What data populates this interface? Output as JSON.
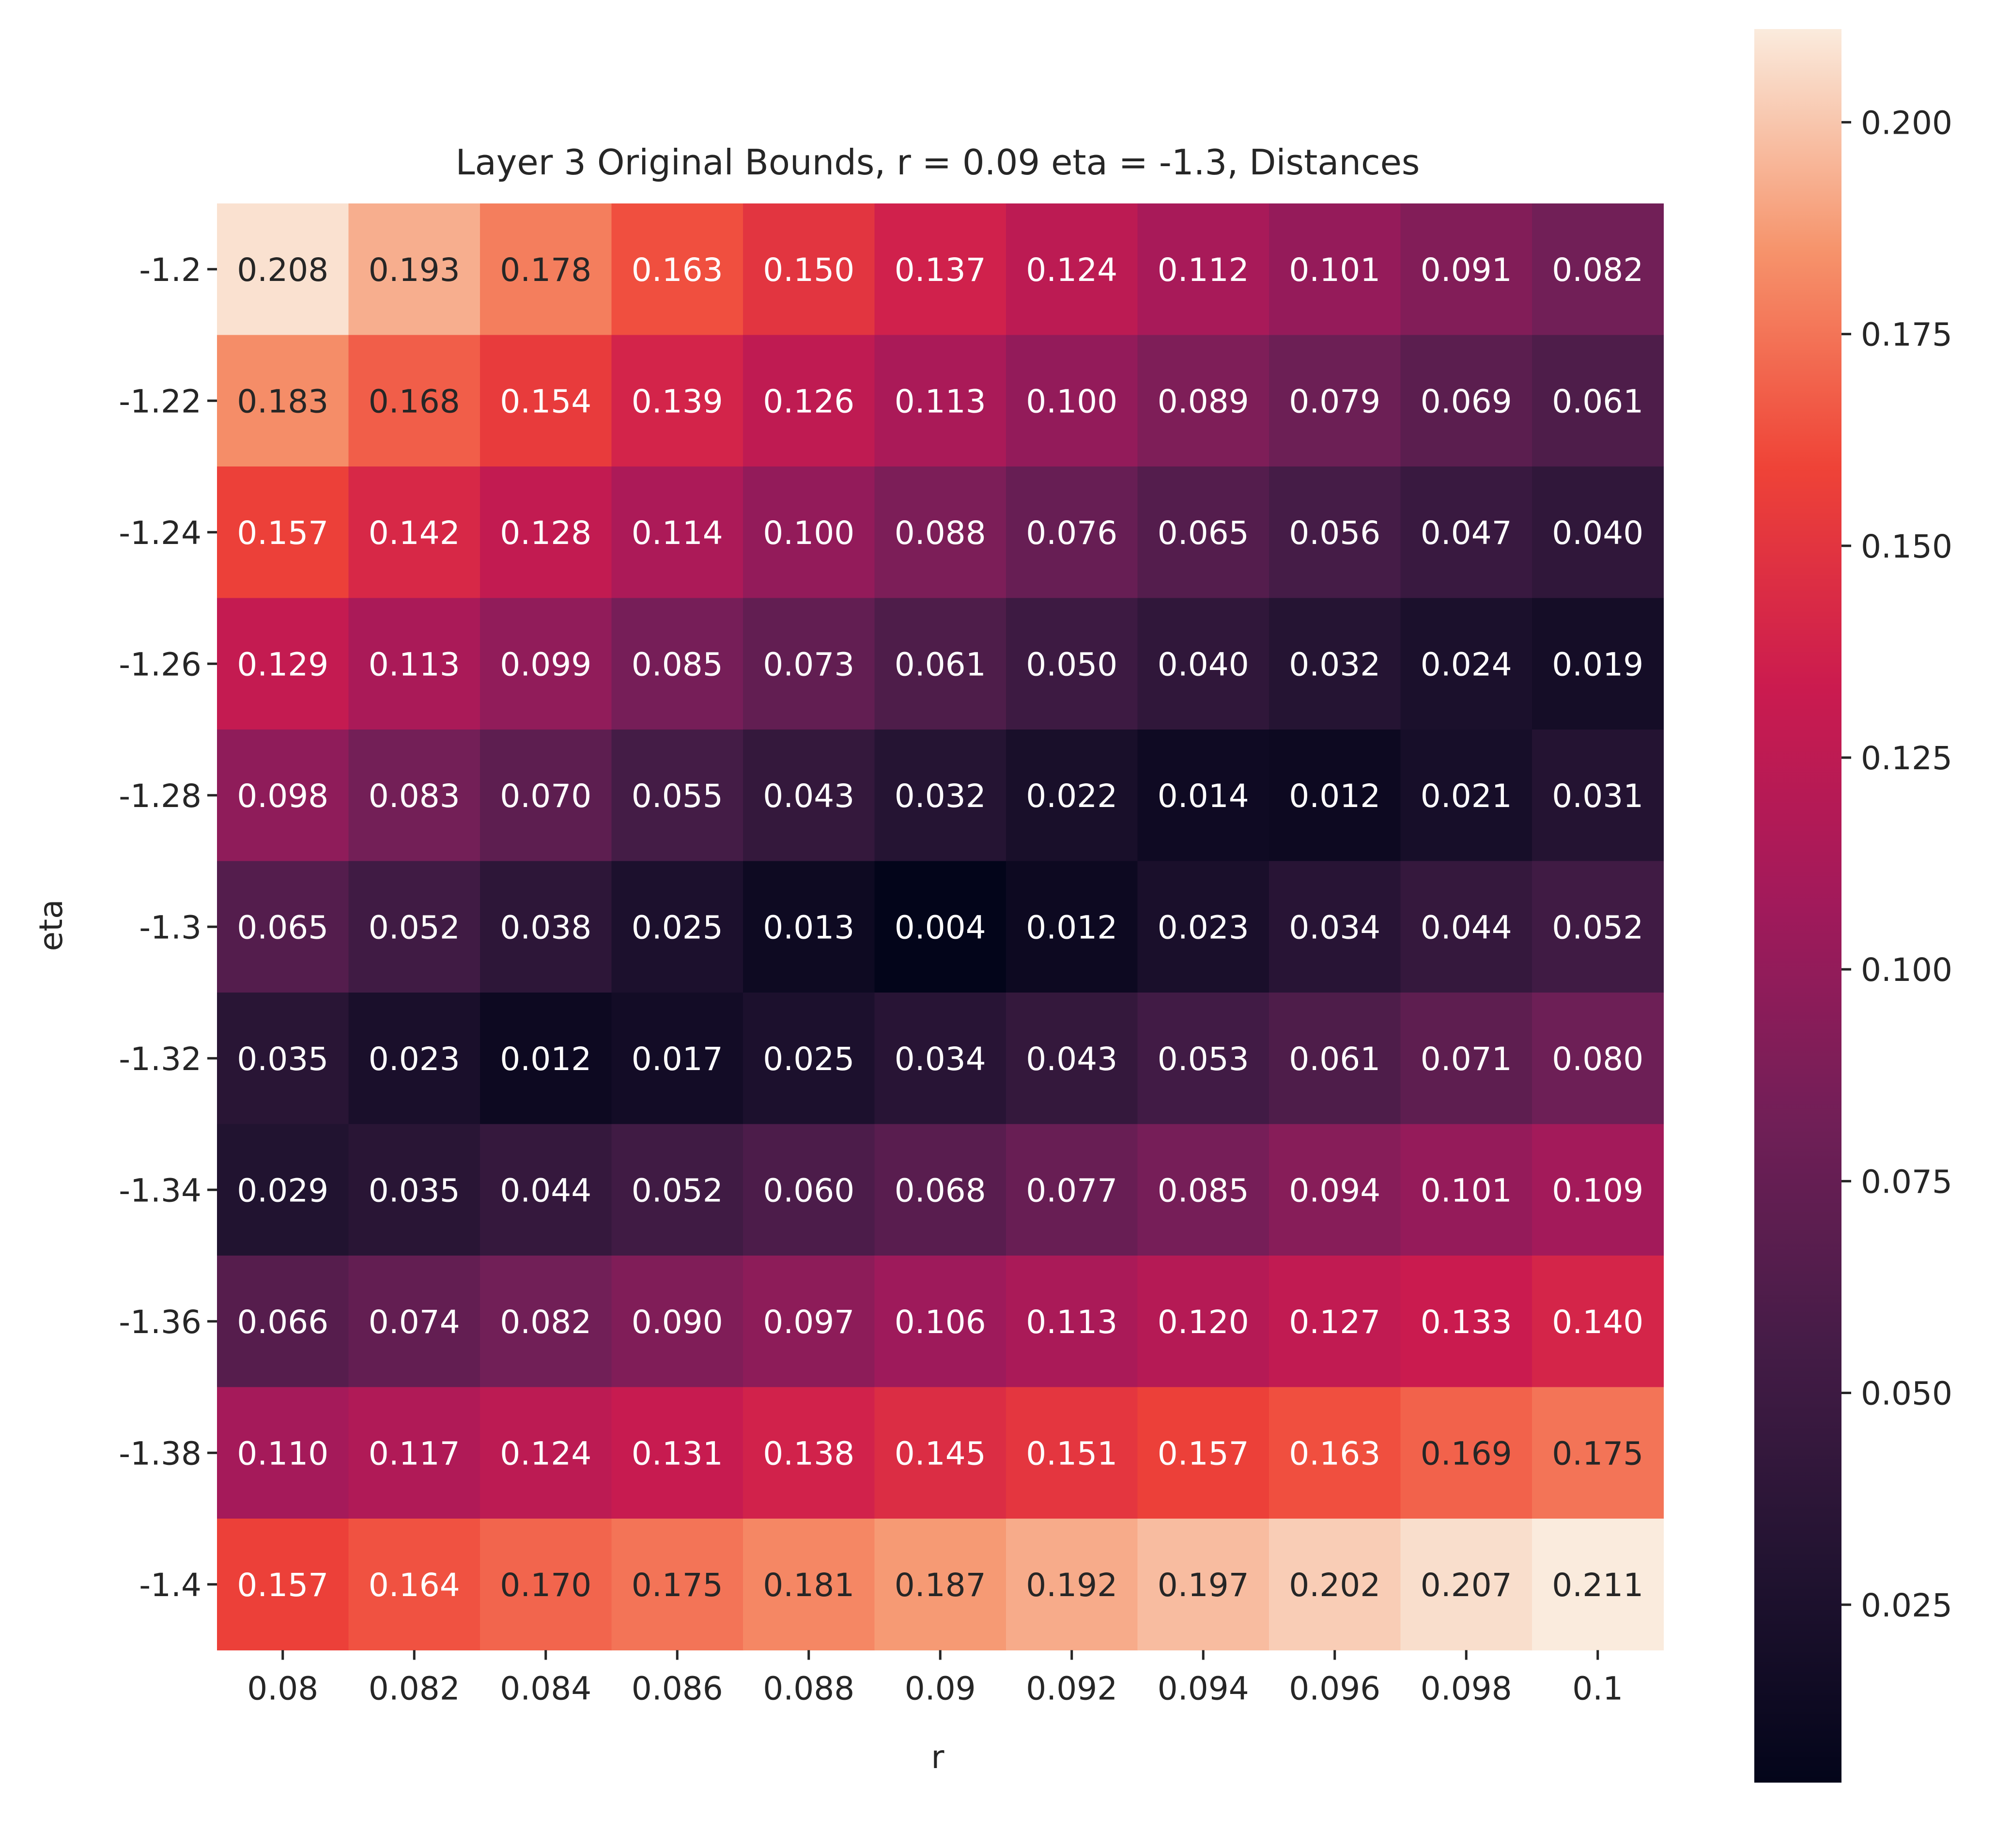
{
  "chart_data": {
    "type": "heatmap",
    "title": "Layer 3 Original Bounds, r = 0.09 eta = -1.3, Distances",
    "xlabel": "r",
    "ylabel": "eta",
    "x": [
      "0.08",
      "0.082",
      "0.084",
      "0.086",
      "0.088",
      "0.09",
      "0.092",
      "0.094",
      "0.096",
      "0.098",
      "0.1"
    ],
    "y": [
      "-1.2",
      "-1.22",
      "-1.24",
      "-1.26",
      "-1.28",
      "-1.3",
      "-1.32",
      "-1.34",
      "-1.36",
      "-1.38",
      "-1.4"
    ],
    "values": [
      [
        0.208,
        0.193,
        0.178,
        0.163,
        0.15,
        0.137,
        0.124,
        0.112,
        0.101,
        0.091,
        0.082
      ],
      [
        0.183,
        0.168,
        0.154,
        0.139,
        0.126,
        0.113,
        0.1,
        0.089,
        0.079,
        0.069,
        0.061
      ],
      [
        0.157,
        0.142,
        0.128,
        0.114,
        0.1,
        0.088,
        0.076,
        0.065,
        0.056,
        0.047,
        0.04
      ],
      [
        0.129,
        0.113,
        0.099,
        0.085,
        0.073,
        0.061,
        0.05,
        0.04,
        0.032,
        0.024,
        0.019
      ],
      [
        0.098,
        0.083,
        0.07,
        0.055,
        0.043,
        0.032,
        0.022,
        0.014,
        0.012,
        0.021,
        0.031
      ],
      [
        0.065,
        0.052,
        0.038,
        0.025,
        0.013,
        0.004,
        0.012,
        0.023,
        0.034,
        0.044,
        0.052
      ],
      [
        0.035,
        0.023,
        0.012,
        0.017,
        0.025,
        0.034,
        0.043,
        0.053,
        0.061,
        0.071,
        0.08
      ],
      [
        0.029,
        0.035,
        0.044,
        0.052,
        0.06,
        0.068,
        0.077,
        0.085,
        0.094,
        0.101,
        0.109
      ],
      [
        0.066,
        0.074,
        0.082,
        0.09,
        0.097,
        0.106,
        0.113,
        0.12,
        0.127,
        0.133,
        0.14
      ],
      [
        0.11,
        0.117,
        0.124,
        0.131,
        0.138,
        0.145,
        0.151,
        0.157,
        0.163,
        0.169,
        0.175
      ],
      [
        0.157,
        0.164,
        0.17,
        0.175,
        0.181,
        0.187,
        0.192,
        0.197,
        0.202,
        0.207,
        0.211
      ]
    ],
    "colorbar": {
      "colormap": "rocket",
      "range": [
        0.004,
        0.211
      ],
      "ticks": [
        "0.025",
        "0.050",
        "0.075",
        "0.100",
        "0.125",
        "0.150",
        "0.175",
        "0.200"
      ]
    },
    "annotations": true,
    "grid": false
  }
}
